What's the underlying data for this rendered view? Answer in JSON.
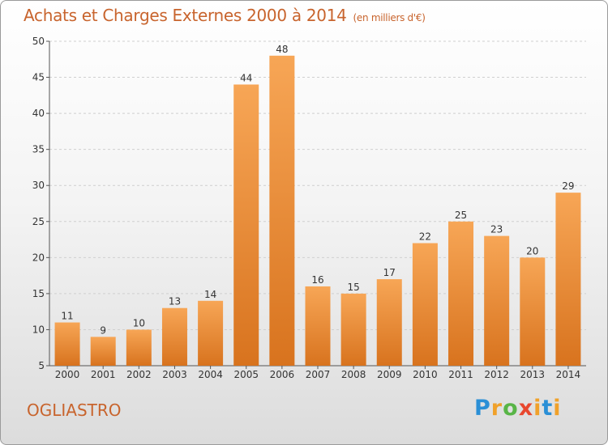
{
  "title": "Achats et Charges Externes 2000 à 2014",
  "unit_note": "(en milliers d'€)",
  "region_label": "OGLIASTRO",
  "logo": {
    "text": "Proxiti",
    "letters": [
      "P",
      "r",
      "o",
      "x",
      "i",
      "t",
      "i"
    ]
  },
  "colors": {
    "bar_top": "#f7a656",
    "bar_bottom": "#d8731e",
    "title": "#c8642d"
  },
  "chart_data": {
    "type": "bar",
    "categories": [
      "2000",
      "2001",
      "2002",
      "2003",
      "2004",
      "2005",
      "2006",
      "2007",
      "2008",
      "2009",
      "2010",
      "2011",
      "2012",
      "2013",
      "2014"
    ],
    "values": [
      11,
      9,
      10,
      13,
      14,
      44,
      48,
      16,
      15,
      17,
      22,
      25,
      23,
      20,
      29
    ],
    "value_labels": [
      "11",
      "9",
      "10",
      "13",
      "14",
      "44",
      "48",
      "16",
      "15",
      "17",
      "22",
      "25",
      "23",
      "20",
      "29"
    ],
    "ylim": [
      5,
      50
    ],
    "yticks": [
      5,
      10,
      15,
      20,
      25,
      30,
      35,
      40,
      45,
      50
    ],
    "ytick_labels": [
      "5",
      "10",
      "15",
      "20",
      "25",
      "30",
      "35",
      "40",
      "45",
      "50"
    ],
    "grid": true,
    "xlabel": "",
    "ylabel": ""
  }
}
